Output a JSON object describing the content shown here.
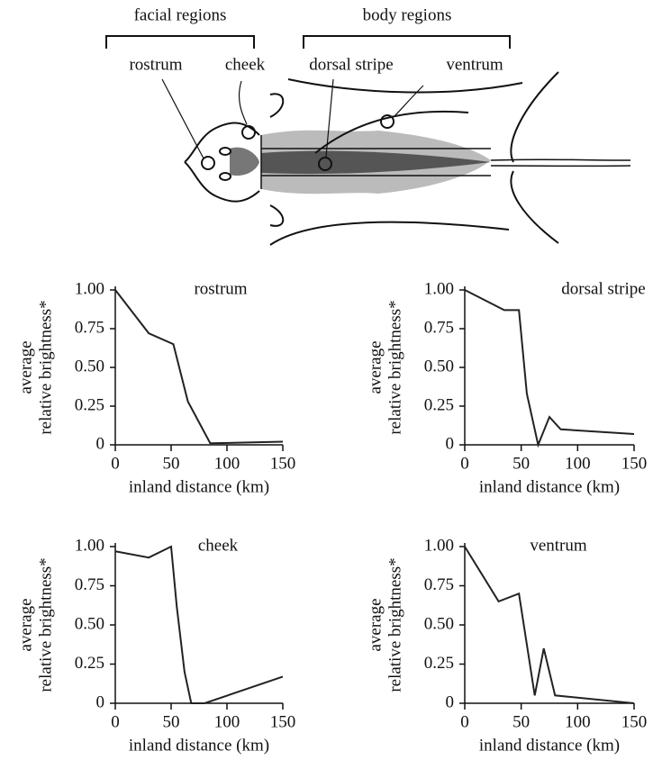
{
  "diagram": {
    "group_labels": [
      "facial regions",
      "body regions"
    ],
    "region_labels": [
      "rostrum",
      "cheek",
      "dorsal stripe",
      "ventrum"
    ]
  },
  "chart_data": [
    {
      "type": "line",
      "title": "rostrum",
      "xlabel": "inland distance (km)",
      "ylabel": [
        "average",
        "relative brightness*"
      ],
      "x": [
        0,
        30,
        52,
        65,
        85,
        150
      ],
      "values": [
        1.0,
        0.72,
        0.65,
        0.28,
        0.01,
        0.02
      ],
      "xlim": [
        0,
        150
      ],
      "ylim": [
        0,
        1
      ],
      "xticks": [
        0,
        50,
        100,
        150
      ],
      "yticks": [
        0,
        0.25,
        {
          "value": 0.5,
          "label": "0.50"
        },
        0.75,
        {
          "value": 1,
          "label": "1.00"
        }
      ],
      "color": "#222222"
    },
    {
      "type": "line",
      "title": "dorsal stripe",
      "xlabel": "inland distance (km)",
      "ylabel": [
        "average",
        "relative brightness*"
      ],
      "x": [
        0,
        35,
        48,
        55,
        65,
        75,
        85,
        150
      ],
      "values": [
        1.0,
        0.87,
        0.87,
        0.33,
        0.0,
        0.18,
        0.1,
        0.07
      ],
      "xlim": [
        0,
        150
      ],
      "ylim": [
        0,
        1
      ],
      "xticks": [
        0,
        50,
        100,
        150
      ],
      "yticks": [
        0,
        0.25,
        {
          "value": 0.5,
          "label": "0.50"
        },
        0.75,
        {
          "value": 1,
          "label": "1.00"
        }
      ],
      "color": "#222222"
    },
    {
      "type": "line",
      "title": "cheek",
      "xlabel": "inland distance (km)",
      "ylabel": [
        "average",
        "relative brightness*"
      ],
      "x": [
        0,
        30,
        50,
        55,
        62,
        68,
        80,
        150
      ],
      "values": [
        0.97,
        0.93,
        1.0,
        0.62,
        0.2,
        0.0,
        0.0,
        0.17
      ],
      "xlim": [
        0,
        150
      ],
      "ylim": [
        0,
        1
      ],
      "xticks": [
        0,
        50,
        100,
        150
      ],
      "yticks": [
        0,
        0.25,
        {
          "value": 0.5,
          "label": "0.50"
        },
        0.75,
        {
          "value": 1,
          "label": "1.00"
        }
      ],
      "color": "#222222"
    },
    {
      "type": "line",
      "title": "ventrum",
      "xlabel": "inland distance (km)",
      "ylabel": [
        "average",
        "relative brightness*"
      ],
      "x": [
        0,
        30,
        48,
        62,
        70,
        80,
        150
      ],
      "values": [
        1.0,
        0.65,
        0.7,
        0.05,
        0.35,
        0.05,
        0.0
      ],
      "xlim": [
        0,
        150
      ],
      "ylim": [
        0,
        1
      ],
      "xticks": [
        0,
        50,
        100,
        150
      ],
      "yticks": [
        0,
        0.25,
        {
          "value": 0.5,
          "label": "0.50"
        },
        0.75,
        {
          "value": 1,
          "label": "1.00"
        }
      ],
      "color": "#222222"
    }
  ]
}
